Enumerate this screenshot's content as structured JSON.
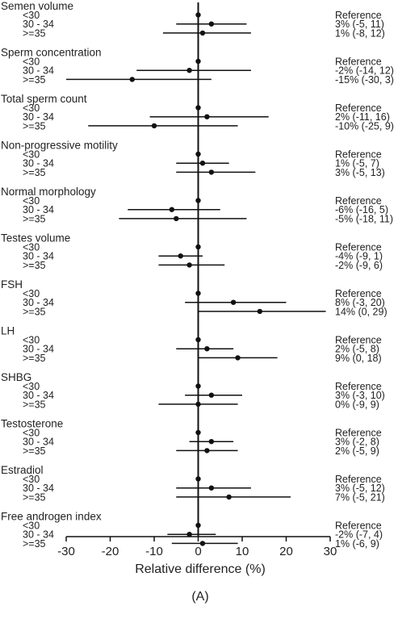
{
  "chart_data": {
    "type": "forest",
    "xlabel": "Relative difference (%)",
    "panel_label": "(A)",
    "xlim": [
      -30,
      30
    ],
    "xticks": [
      "-30",
      "-20",
      "-10",
      "0",
      "10",
      "20",
      "30"
    ],
    "reference_line": 0,
    "groups": [
      {
        "title": "Semen volume",
        "rows": [
          {
            "label": "<30",
            "estimate": 0,
            "ci": null,
            "text": "Reference"
          },
          {
            "label": "30 - 34",
            "estimate": 3,
            "ci": [
              -5,
              11
            ],
            "text": "3% (-5, 11)"
          },
          {
            "label": ">=35",
            "estimate": 1,
            "ci": [
              -8,
              12
            ],
            "text": "1% (-8, 12)"
          }
        ]
      },
      {
        "title": "Sperm concentration",
        "rows": [
          {
            "label": "<30",
            "estimate": 0,
            "ci": null,
            "text": "Reference"
          },
          {
            "label": "30 - 34",
            "estimate": -2,
            "ci": [
              -14,
              12
            ],
            "text": "-2% (-14, 12)"
          },
          {
            "label": ">=35",
            "estimate": -15,
            "ci": [
              -30,
              3
            ],
            "text": "-15% (-30, 3)"
          }
        ]
      },
      {
        "title": "Total sperm count",
        "rows": [
          {
            "label": "<30",
            "estimate": 0,
            "ci": null,
            "text": "Reference"
          },
          {
            "label": "30 - 34",
            "estimate": 2,
            "ci": [
              -11,
              16
            ],
            "text": "2% (-11, 16)"
          },
          {
            "label": ">=35",
            "estimate": -10,
            "ci": [
              -25,
              9
            ],
            "text": "-10% (-25, 9)"
          }
        ]
      },
      {
        "title": "Non-progressive motility",
        "rows": [
          {
            "label": "<30",
            "estimate": 0,
            "ci": null,
            "text": "Reference"
          },
          {
            "label": "30 - 34",
            "estimate": 1,
            "ci": [
              -5,
              7
            ],
            "text": "1% (-5, 7)"
          },
          {
            "label": ">=35",
            "estimate": 3,
            "ci": [
              -5,
              13
            ],
            "text": "3% (-5, 13)"
          }
        ]
      },
      {
        "title": "Normal morphology",
        "rows": [
          {
            "label": "<30",
            "estimate": 0,
            "ci": null,
            "text": "Reference"
          },
          {
            "label": "30 - 34",
            "estimate": -6,
            "ci": [
              -16,
              5
            ],
            "text": "-6% (-16, 5)"
          },
          {
            "label": ">=35",
            "estimate": -5,
            "ci": [
              -18,
              11
            ],
            "text": "-5% (-18, 11)"
          }
        ]
      },
      {
        "title": "Testes volume",
        "rows": [
          {
            "label": "<30",
            "estimate": 0,
            "ci": null,
            "text": "Reference"
          },
          {
            "label": "30 - 34",
            "estimate": -4,
            "ci": [
              -9,
              1
            ],
            "text": "-4% (-9, 1)"
          },
          {
            "label": ">=35",
            "estimate": -2,
            "ci": [
              -9,
              6
            ],
            "text": "-2% (-9, 6)"
          }
        ]
      },
      {
        "title": "FSH",
        "rows": [
          {
            "label": "<30",
            "estimate": 0,
            "ci": null,
            "text": "Reference"
          },
          {
            "label": "30 - 34",
            "estimate": 8,
            "ci": [
              -3,
              20
            ],
            "text": "8% (-3, 20)"
          },
          {
            "label": ">=35",
            "estimate": 14,
            "ci": [
              0,
              29
            ],
            "text": "14% (0, 29)"
          }
        ]
      },
      {
        "title": "LH",
        "rows": [
          {
            "label": "<30",
            "estimate": 0,
            "ci": null,
            "text": "Reference"
          },
          {
            "label": "30 - 34",
            "estimate": 2,
            "ci": [
              -5,
              8
            ],
            "text": "2% (-5, 8)"
          },
          {
            "label": ">=35",
            "estimate": 9,
            "ci": [
              0,
              18
            ],
            "text": "9% (0, 18)"
          }
        ]
      },
      {
        "title": "SHBG",
        "rows": [
          {
            "label": "<30",
            "estimate": 0,
            "ci": null,
            "text": "Reference"
          },
          {
            "label": "30 - 34",
            "estimate": 3,
            "ci": [
              -3,
              10
            ],
            "text": "3% (-3, 10)"
          },
          {
            "label": ">=35",
            "estimate": 0,
            "ci": [
              -9,
              9
            ],
            "text": "0% (-9, 9)"
          }
        ]
      },
      {
        "title": "Testosterone",
        "rows": [
          {
            "label": "<30",
            "estimate": 0,
            "ci": null,
            "text": "Reference"
          },
          {
            "label": "30 - 34",
            "estimate": 3,
            "ci": [
              -2,
              8
            ],
            "text": "3% (-2, 8)"
          },
          {
            "label": ">=35",
            "estimate": 2,
            "ci": [
              -5,
              9
            ],
            "text": "2% (-5, 9)"
          }
        ]
      },
      {
        "title": "Estradiol",
        "rows": [
          {
            "label": "<30",
            "estimate": 0,
            "ci": null,
            "text": "Reference"
          },
          {
            "label": "30 - 34",
            "estimate": 3,
            "ci": [
              -5,
              12
            ],
            "text": "3% (-5, 12)"
          },
          {
            "label": ">=35",
            "estimate": 7,
            "ci": [
              -5,
              21
            ],
            "text": "7% (-5, 21)"
          }
        ]
      },
      {
        "title": "Free androgen index",
        "rows": [
          {
            "label": "<30",
            "estimate": 0,
            "ci": null,
            "text": "Reference"
          },
          {
            "label": "30 - 34",
            "estimate": -2,
            "ci": [
              -7,
              4
            ],
            "text": "-2% (-7, 4)"
          },
          {
            "label": ">=35",
            "estimate": 1,
            "ci": [
              -6,
              9
            ],
            "text": "1% (-6, 9)"
          }
        ]
      }
    ]
  }
}
